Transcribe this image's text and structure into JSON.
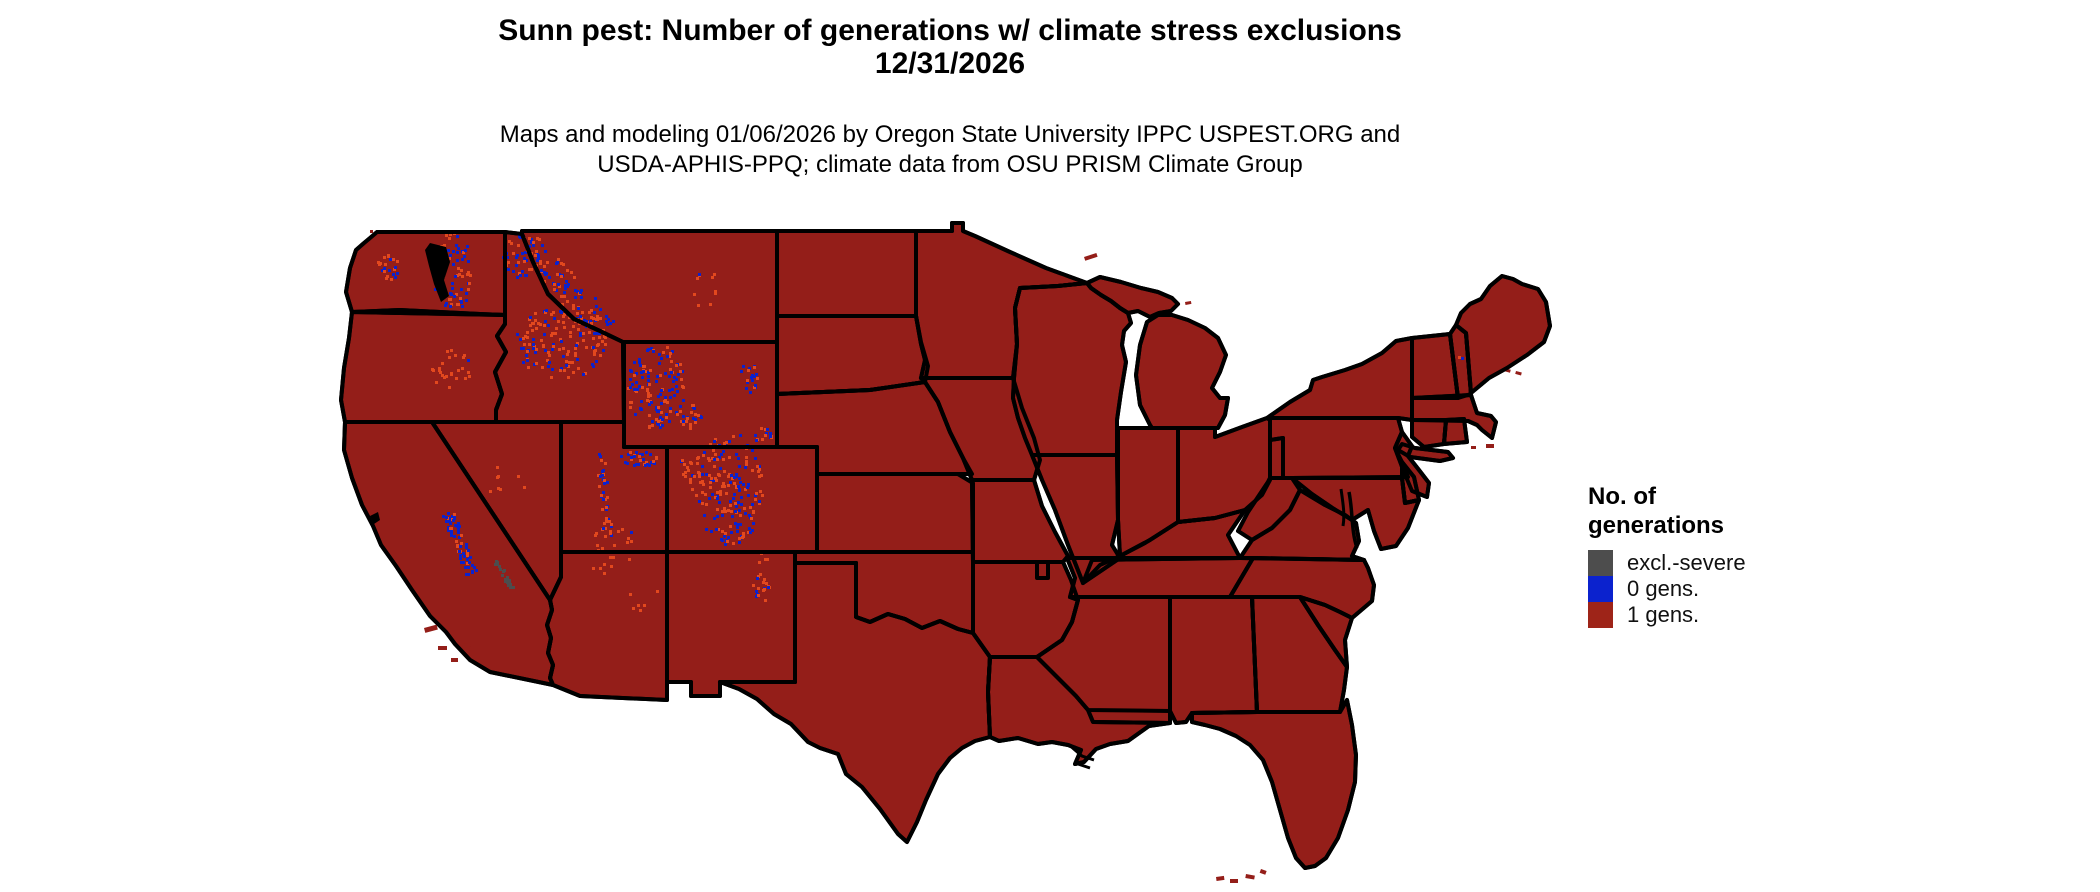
{
  "title": {
    "line1": "Sunn pest: Number of generations w/ climate stress exclusions",
    "line2": "12/31/2026"
  },
  "subtitle": {
    "line1": "Maps and modeling 01/06/2026 by Oregon State University IPPC USPEST.ORG and",
    "line2": "USDA-APHIS-PPQ; climate data from OSU PRISM Climate Group"
  },
  "legend": {
    "title_line1": "No. of",
    "title_line2": "generations",
    "items": [
      {
        "label": "excl.-severe",
        "color": "#4D4D4D"
      },
      {
        "label": "0 gens.",
        "color": "#0B22CE"
      },
      {
        "label": "1 gens.",
        "color": "#9E2418"
      }
    ]
  },
  "map": {
    "region": "Conterminous United States",
    "date_shown": "12/31/2026",
    "colors": {
      "one_generation_fill": "#941E19",
      "zero_generation_speckle": "#0B22CE",
      "exclusion_severe_gray": "#4D4D4D",
      "exclusion_speckle_orange": "#E2481E",
      "state_border": "#000000",
      "water_background": "#FFFFFF"
    }
  }
}
